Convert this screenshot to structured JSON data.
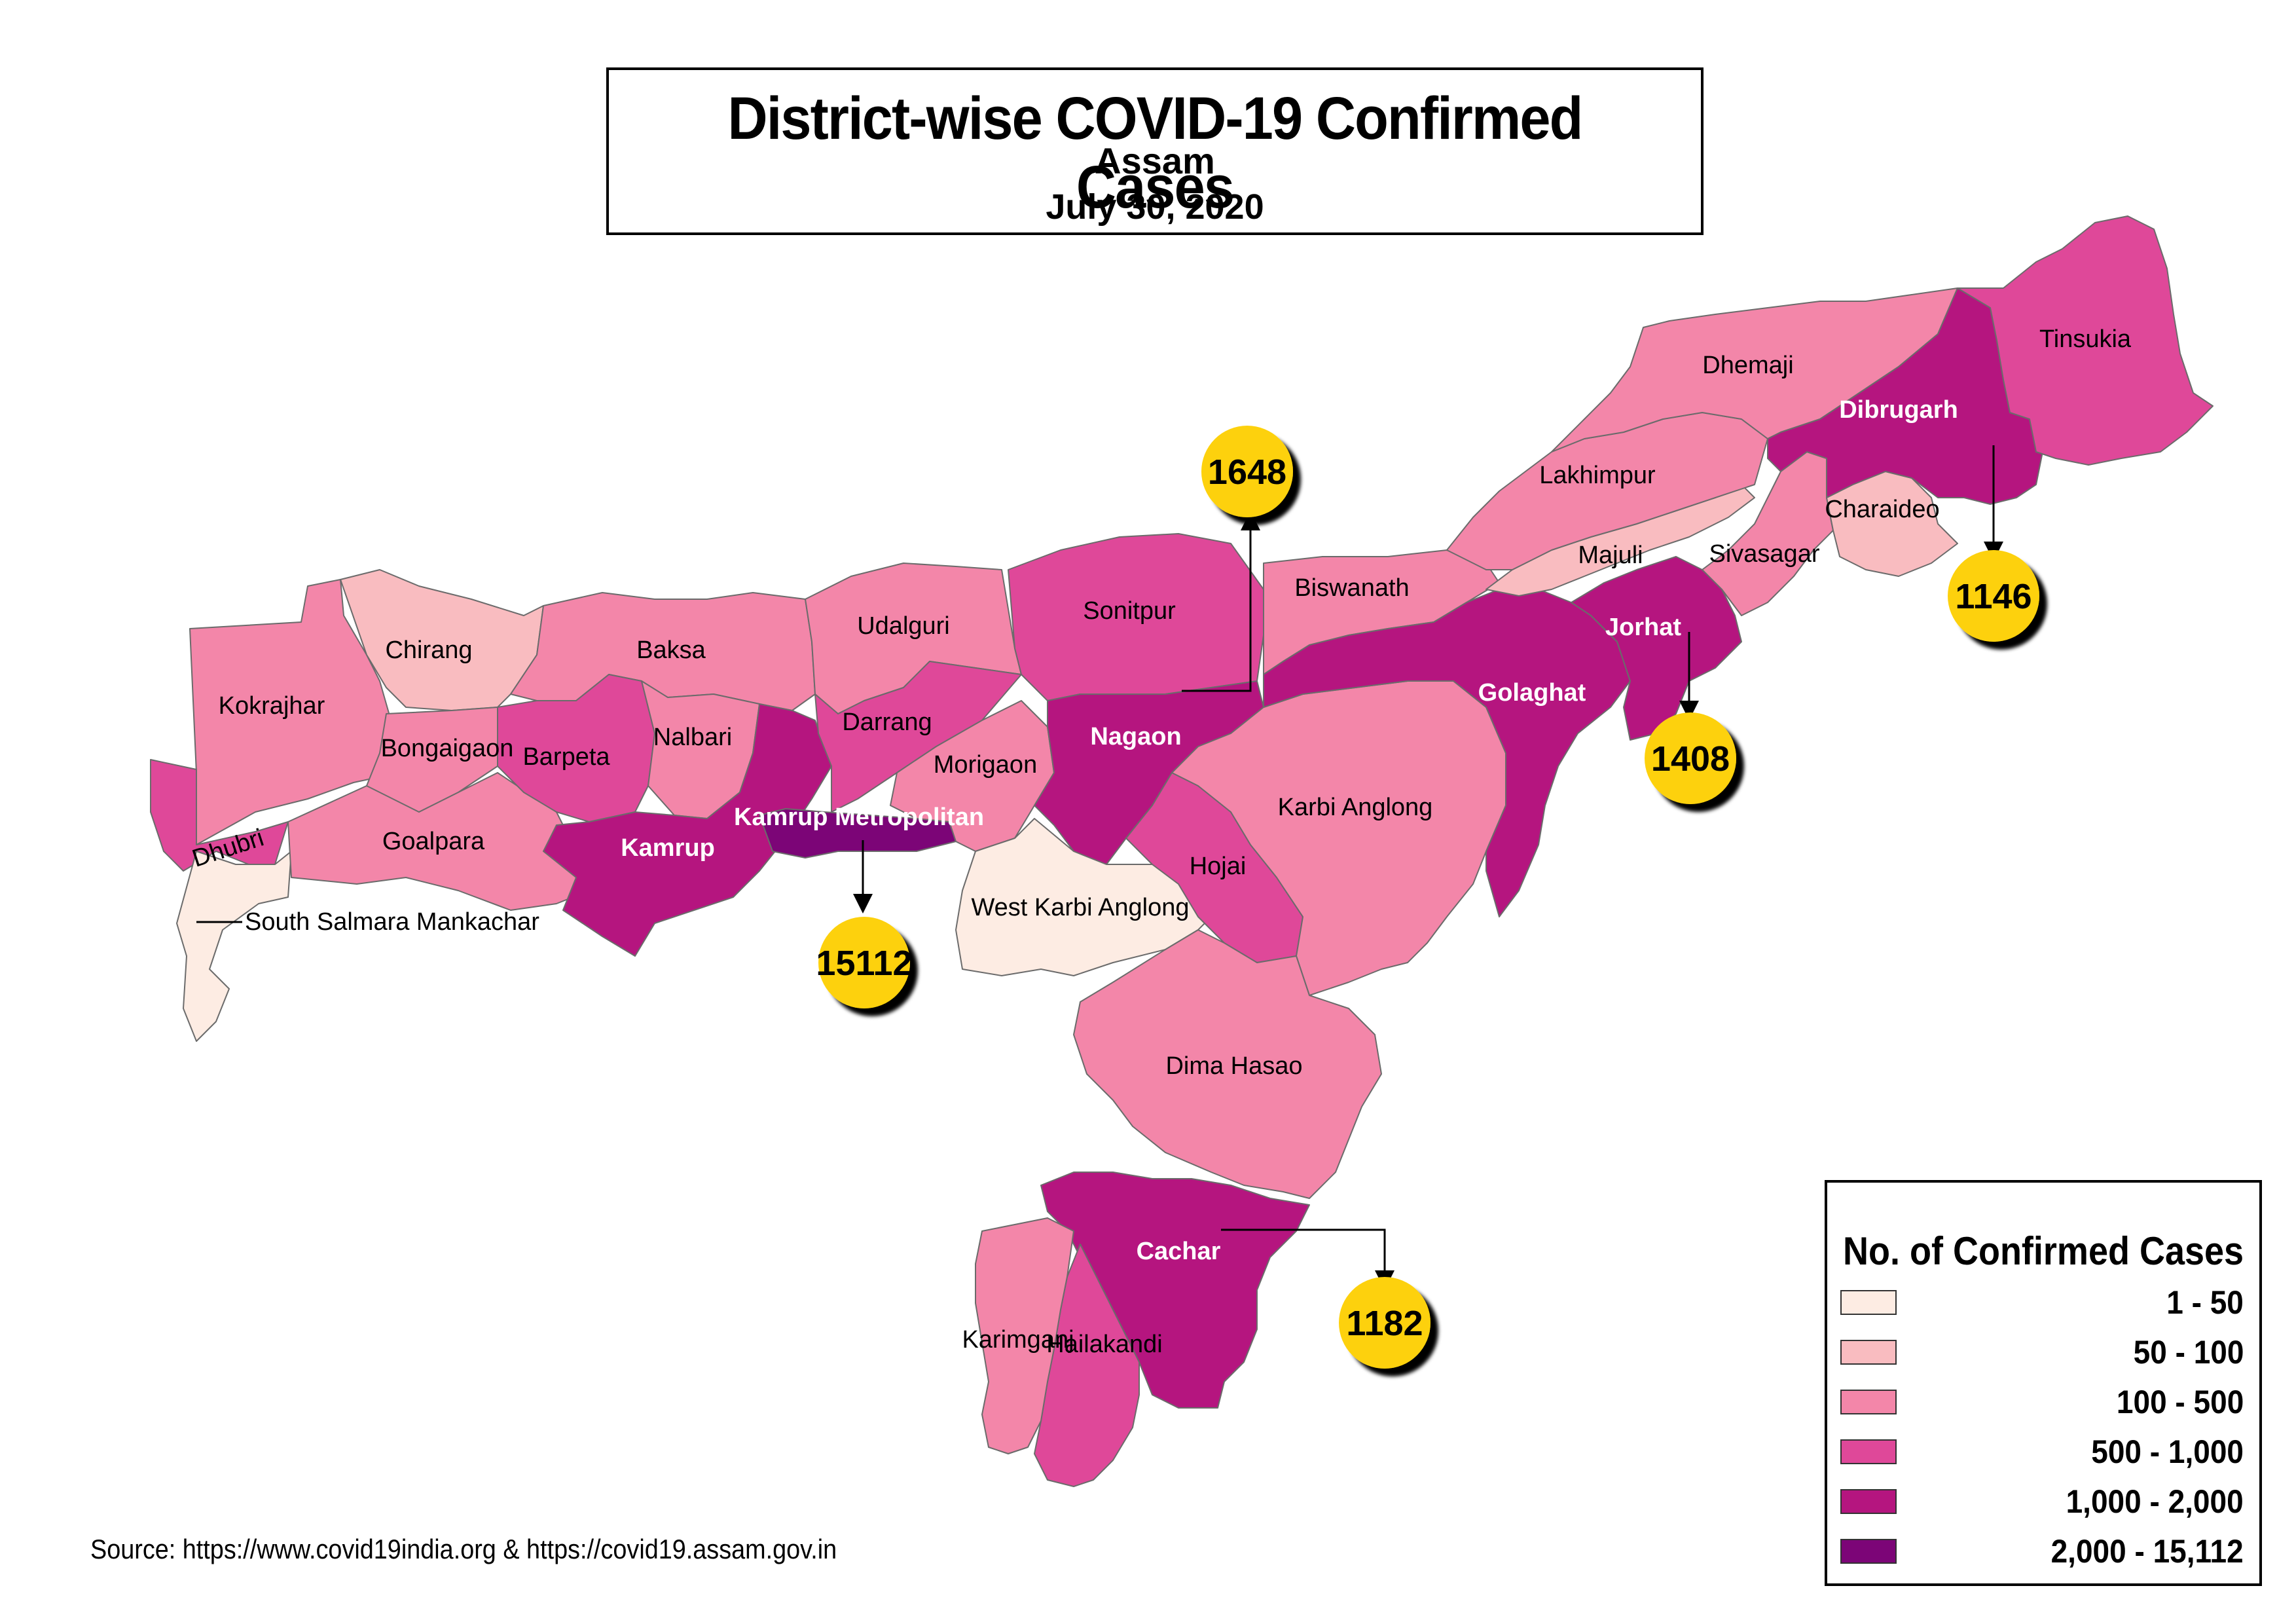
{
  "title": {
    "main": "District-wise COVID-19 Confirmed Cases",
    "region": "Assam",
    "date": "July 30, 2020"
  },
  "legend": {
    "title": "No. of Confirmed Cases",
    "classes": [
      {
        "label": "1 - 50",
        "color": "#fdece3"
      },
      {
        "label": "50 - 100",
        "color": "#f9bcc0"
      },
      {
        "label": "100 - 500",
        "color": "#f386a9"
      },
      {
        "label": "500 - 1,000",
        "color": "#df4899"
      },
      {
        "label": "1,000 - 2,000",
        "color": "#b5157f"
      },
      {
        "label": "2,000 - 15,112",
        "color": "#7c0577"
      }
    ]
  },
  "districts": [
    {
      "name": "Kokrajhar",
      "class": 2
    },
    {
      "name": "Chirang",
      "class": 1
    },
    {
      "name": "Baksa",
      "class": 2
    },
    {
      "name": "Udalguri",
      "class": 2
    },
    {
      "name": "Sonitpur",
      "class": 3
    },
    {
      "name": "Biswanath",
      "class": 2
    },
    {
      "name": "Lakhimpur",
      "class": 2
    },
    {
      "name": "Dhemaji",
      "class": 2
    },
    {
      "name": "Dibrugarh",
      "class": 4
    },
    {
      "name": "Tinsukia",
      "class": 3
    },
    {
      "name": "Charaideo",
      "class": 1
    },
    {
      "name": "Sivasagar",
      "class": 2
    },
    {
      "name": "Majuli",
      "class": 1
    },
    {
      "name": "Jorhat",
      "class": 4
    },
    {
      "name": "Golaghat",
      "class": 4
    },
    {
      "name": "Karbi Anglong",
      "class": 2
    },
    {
      "name": "West Karbi Anglong",
      "class": 0
    },
    {
      "name": "Hojai",
      "class": 3
    },
    {
      "name": "Nagaon",
      "class": 4
    },
    {
      "name": "Morigaon",
      "class": 2
    },
    {
      "name": "Darrang",
      "class": 3
    },
    {
      "name": "Nalbari",
      "class": 2
    },
    {
      "name": "Barpeta",
      "class": 3
    },
    {
      "name": "Bongaigaon",
      "class": 2
    },
    {
      "name": "Dhubri",
      "class": 3
    },
    {
      "name": "Goalpara",
      "class": 2
    },
    {
      "name": "South Salmara Mankachar",
      "class": 0
    },
    {
      "name": "Kamrup",
      "class": 4
    },
    {
      "name": "Kamrup Metropolitan",
      "class": 5
    },
    {
      "name": "Dima Hasao",
      "class": 2
    },
    {
      "name": "Cachar",
      "class": 4
    },
    {
      "name": "Karimganj",
      "class": 2
    },
    {
      "name": "Hailakandi",
      "class": 3
    }
  ],
  "callouts": [
    {
      "district": "Kamrup Metropolitan",
      "value": "15112"
    },
    {
      "district": "Nagaon",
      "value": "1648"
    },
    {
      "district": "Dibrugarh",
      "value": "1146"
    },
    {
      "district": "Jorhat",
      "value": "1408"
    },
    {
      "district": "Cachar",
      "value": "1182"
    }
  ],
  "callout_color": "#fdd10a",
  "source": "Source: https://www.covid19india.org & https://covid19.assam.gov.in"
}
